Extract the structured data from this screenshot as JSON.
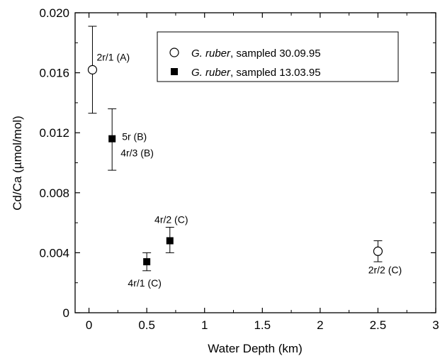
{
  "chart_data": {
    "type": "scatter",
    "title": "",
    "xlabel": "Water Depth (km)",
    "ylabel": "Cd/Ca (µmol/mol)",
    "xlim": [
      -0.12,
      3.0
    ],
    "ylim": [
      0,
      0.02
    ],
    "x_ticks": [
      "0",
      "0.5",
      "1",
      "1.5",
      "2",
      "2.5",
      "3"
    ],
    "y_ticks": [
      "0",
      "0.004",
      "0.008",
      "0.012",
      "0.016",
      "0.020"
    ],
    "grid": false,
    "legend_position": "top-right",
    "series": [
      {
        "name": "G. ruber, sampled 30.09.95",
        "name_italic": "G. ruber",
        "name_rest": ", sampled 30.09.95",
        "marker": "open-circle",
        "points": [
          {
            "x": 0.03,
            "y": 0.0162,
            "err_low": 0.0133,
            "err_high": 0.0191
          },
          {
            "x": 2.5,
            "y": 0.0041,
            "err_low": 0.0034,
            "err_high": 0.0048
          }
        ]
      },
      {
        "name": "G. ruber, sampled 13.03.95",
        "name_italic": "G. ruber",
        "name_rest": ", sampled 13.03.95",
        "marker": "filled-square",
        "points": [
          {
            "x": 0.2,
            "y": 0.0116,
            "err_low": 0.0095,
            "err_high": 0.0136
          },
          {
            "x": 0.5,
            "y": 0.0034,
            "err_low": 0.0028,
            "err_high": 0.004
          },
          {
            "x": 0.7,
            "y": 0.0048,
            "err_low": 0.004,
            "err_high": 0.0057
          }
        ]
      }
    ],
    "annotations": [
      {
        "text": "2r/1 (A)",
        "x": 0.03,
        "y": 0.0162
      },
      {
        "text": "5r (B)",
        "x": 0.2,
        "y": 0.0116
      },
      {
        "text": "4r/3 (B)",
        "x": 0.2,
        "y": 0.0116
      },
      {
        "text": "4r/1 (C)",
        "x": 0.5,
        "y": 0.0034
      },
      {
        "text": "4r/2 (C)",
        "x": 0.7,
        "y": 0.0048
      },
      {
        "text": "2r/2 (C)",
        "x": 2.5,
        "y": 0.0041
      }
    ]
  }
}
